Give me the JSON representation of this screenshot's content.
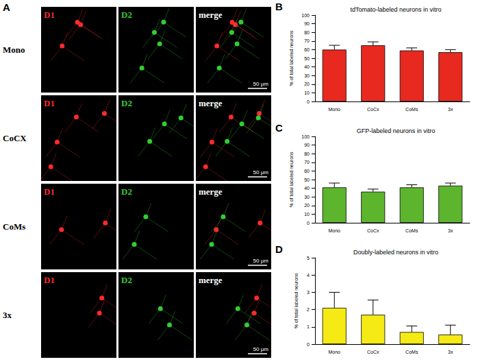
{
  "image_panel": {
    "panel": "A",
    "rows": [
      "Mono",
      "CoCX",
      "CoMs",
      "3x"
    ],
    "columns": [
      {
        "label": "D1",
        "color": "#ff2a2a"
      },
      {
        "label": "D2",
        "color": "#33cc33"
      },
      {
        "label": "merge",
        "color": "#ffffff"
      }
    ],
    "scale_bar": "50 μm"
  },
  "chart_data": [
    {
      "panel": "B",
      "type": "bar",
      "title": "tdTomato-labeled neurons in vitro",
      "y_label": "% of total labeled neurons",
      "categories": [
        "Mono",
        "CoCx",
        "CoMs",
        "3x"
      ],
      "values": [
        60,
        65,
        59,
        57
      ],
      "errors": [
        5,
        4,
        3,
        3
      ],
      "color": "#e8291f",
      "ylim": [
        0,
        100
      ],
      "yticks": [
        0,
        10,
        20,
        30,
        40,
        50,
        60,
        70,
        80,
        90,
        100
      ],
      "grid": false
    },
    {
      "panel": "C",
      "type": "bar",
      "title": "GFP-labeled neurons in vitro",
      "y_label": "% of total labeled neurons",
      "categories": [
        "Mono",
        "CoCx",
        "CoMs",
        "3x"
      ],
      "values": [
        41,
        36,
        41,
        43
      ],
      "errors": [
        5,
        3,
        3,
        3
      ],
      "color": "#5db52e",
      "ylim": [
        0,
        100
      ],
      "yticks": [
        0,
        10,
        20,
        30,
        40,
        50,
        60,
        70,
        80,
        90,
        100
      ],
      "grid": false
    },
    {
      "panel": "D",
      "type": "bar",
      "title": "Doubly-labeled neurons in vitro",
      "y_label": "% of total labeled neurons",
      "categories": [
        "Mono",
        "CoCx",
        "CoMs",
        "3x"
      ],
      "values": [
        2.1,
        1.7,
        0.7,
        0.55
      ],
      "errors": [
        0.9,
        0.85,
        0.35,
        0.55
      ],
      "color": "#f5ea14",
      "ylim": [
        0,
        5
      ],
      "yticks": [
        0,
        1,
        2,
        3,
        4,
        5
      ],
      "grid": false
    }
  ]
}
